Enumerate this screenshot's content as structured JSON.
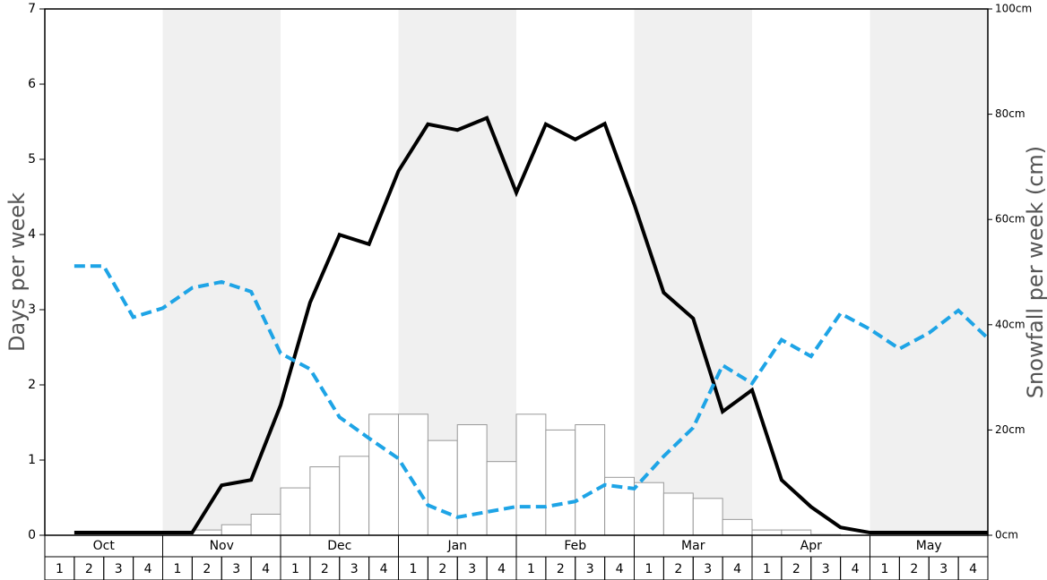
{
  "chart_data": {
    "type": "bar-line",
    "y_label": "Days per week",
    "y2_label": "Snowfall per week (cm)",
    "months": [
      "Oct",
      "Nov",
      "Dec",
      "Jan",
      "Feb",
      "Mar",
      "Apr",
      "May"
    ],
    "categories": [
      "1",
      "2",
      "3",
      "4",
      "1",
      "2",
      "3",
      "4",
      "1",
      "2",
      "3",
      "4",
      "1",
      "2",
      "3",
      "4",
      "1",
      "2",
      "3",
      "4",
      "1",
      "2",
      "3",
      "4",
      "1",
      "2",
      "3",
      "4",
      "1",
      "2",
      "3",
      "4"
    ],
    "ylim": [
      0,
      7
    ],
    "yticks": [
      0,
      1,
      2,
      3,
      4,
      5,
      6,
      7
    ],
    "y2lim": [
      0,
      100
    ],
    "y2ticks": [
      {
        "value": 0,
        "label": "0cm"
      },
      {
        "value": 20,
        "label": "20cm"
      },
      {
        "value": 40,
        "label": "40cm"
      },
      {
        "value": 60,
        "label": "60cm"
      },
      {
        "value": 80,
        "label": "80cm"
      },
      {
        "value": 100,
        "label": "100cm"
      }
    ],
    "series": [
      {
        "kind": "bar",
        "color": "#ffffff",
        "values": [
          0,
          0,
          0,
          0,
          0,
          0.07,
          0.14,
          0.28,
          0.63,
          0.91,
          1.05,
          1.61,
          1.61,
          1.26,
          1.47,
          0.98,
          1.61,
          1.4,
          1.47,
          0.77,
          0.7,
          0.56,
          0.49,
          0.21,
          0.07,
          0.07,
          0.01,
          0,
          0,
          0,
          0,
          0
        ]
      },
      {
        "kind": "line",
        "axis": "y2",
        "color": "#000000",
        "values": [
          0.5,
          0.5,
          0.5,
          0.5,
          0.5,
          9.5,
          10.5,
          24.7,
          44.2,
          57.1,
          55.3,
          69.2,
          78.1,
          77.0,
          79.3,
          65.1,
          78.1,
          75.2,
          78.2,
          62.9,
          46.1,
          41.2,
          23.5,
          27.6,
          10.5,
          5.4,
          1.5,
          0.5,
          0.5,
          0.5,
          0.5,
          0.5
        ]
      },
      {
        "kind": "dashed-line",
        "color": "#1ea4e6",
        "values": [
          3.58,
          3.58,
          2.9,
          3.02,
          3.29,
          3.37,
          3.24,
          2.42,
          2.21,
          1.57,
          1.29,
          1.02,
          0.4,
          0.24,
          0.31,
          0.38,
          0.38,
          0.45,
          0.67,
          0.62,
          1.05,
          1.43,
          2.26,
          2.02,
          2.6,
          2.38,
          2.95,
          2.74,
          2.48,
          2.69,
          2.99,
          2.62
        ]
      }
    ]
  }
}
